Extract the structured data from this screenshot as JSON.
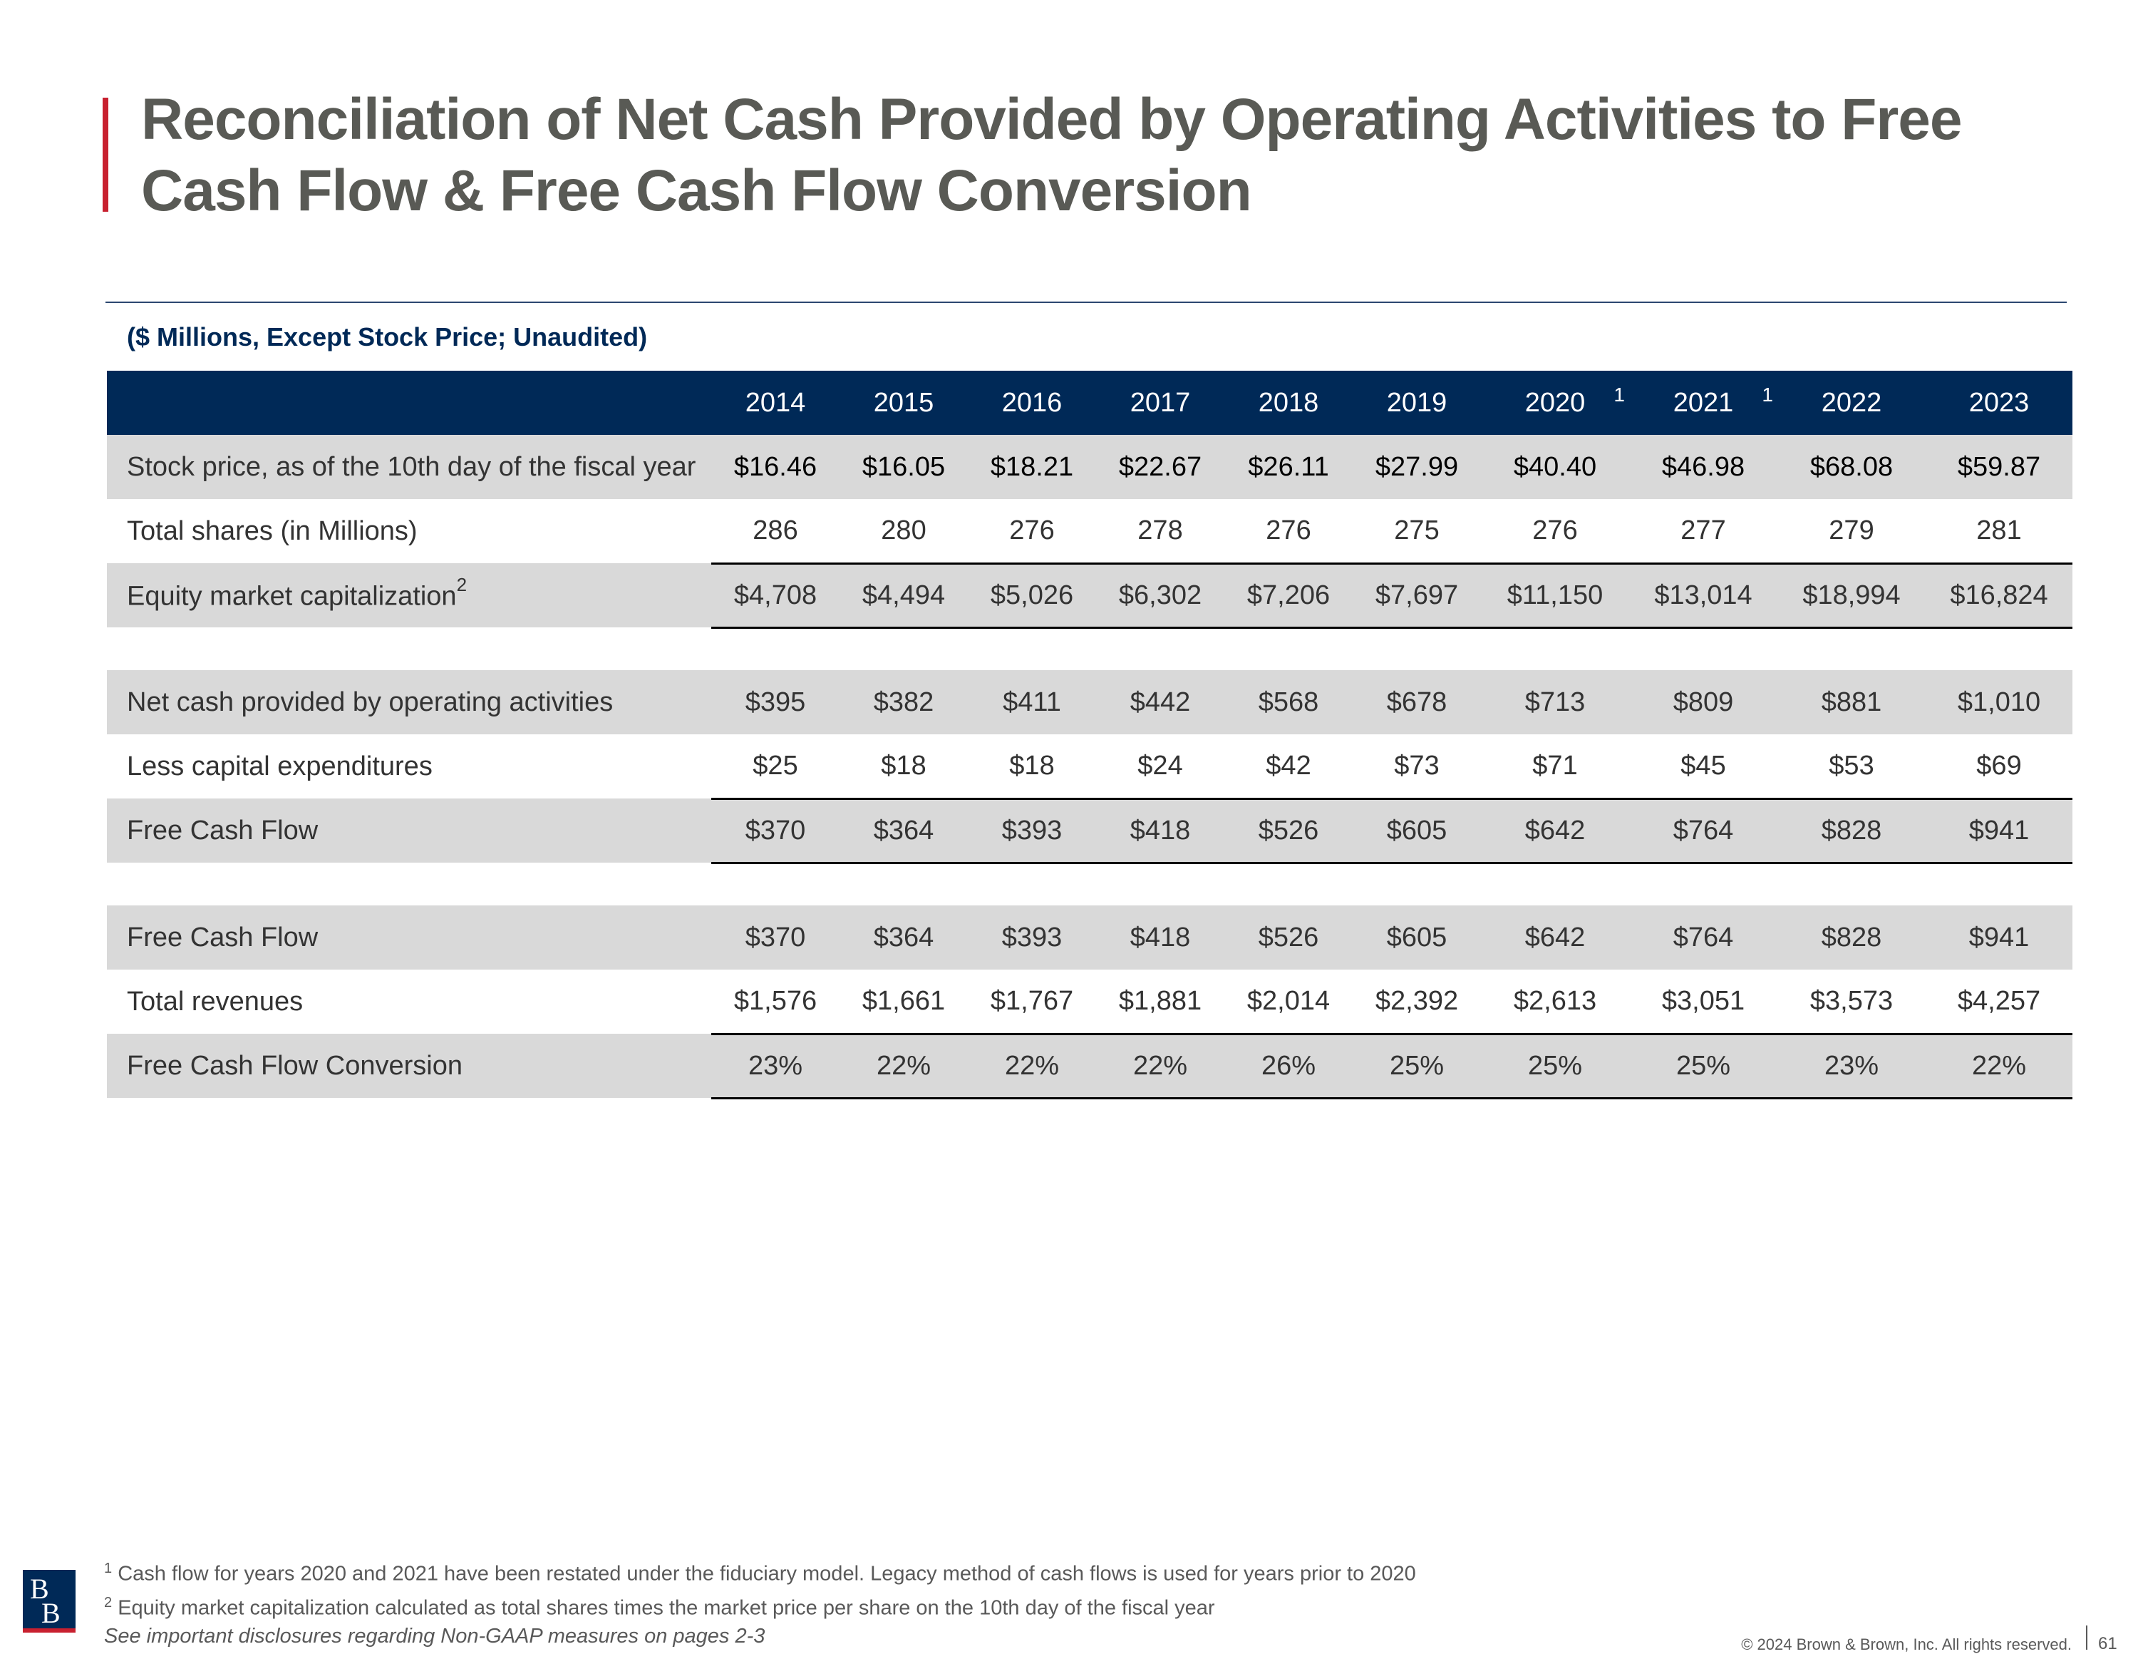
{
  "title": "Reconciliation of Net Cash Provided by Operating Activities to Free Cash Flow & Free Cash Flow Conversion",
  "subtitle": "($ Millions, Except Stock Price; Unaudited)",
  "colors": {
    "accent": "#c8202f",
    "navy": "#002957",
    "row_shade": "#d9d9d9",
    "title_gray": "#595a55"
  },
  "table": {
    "years": [
      "2014",
      "2015",
      "2016",
      "2017",
      "2018",
      "2019",
      "2020",
      "2021",
      "2022",
      "2023"
    ],
    "year_footnotes": {
      "2020": "1",
      "2021": "1"
    },
    "rows": [
      {
        "label": "Stock price, as of the 10th day of the fiscal year",
        "values": [
          "$16.46",
          "$16.05",
          "$18.21",
          "$22.67",
          "$26.11",
          "$27.99",
          "$40.40",
          "$46.98",
          "$68.08",
          "$59.87"
        ]
      },
      {
        "label": "Total shares (in Millions)",
        "values": [
          "286",
          "280",
          "276",
          "278",
          "276",
          "275",
          "276",
          "277",
          "279",
          "281"
        ]
      },
      {
        "label": "Equity market capitalization",
        "footnote": "2",
        "values": [
          "$4,708",
          "$4,494",
          "$5,026",
          "$6,302",
          "$7,206",
          "$7,697",
          "$11,150",
          "$13,014",
          "$18,994",
          "$16,824"
        ]
      },
      {
        "label": "Net cash provided by operating activities",
        "values": [
          "$395",
          "$382",
          "$411",
          "$442",
          "$568",
          "$678",
          "$713",
          "$809",
          "$881",
          "$1,010"
        ]
      },
      {
        "label": "Less capital expenditures",
        "values": [
          "$25",
          "$18",
          "$18",
          "$24",
          "$42",
          "$73",
          "$71",
          "$45",
          "$53",
          "$69"
        ]
      },
      {
        "label": "Free Cash Flow",
        "values": [
          "$370",
          "$364",
          "$393",
          "$418",
          "$526",
          "$605",
          "$642",
          "$764",
          "$828",
          "$941"
        ]
      },
      {
        "label": "Free Cash Flow",
        "values": [
          "$370",
          "$364",
          "$393",
          "$418",
          "$526",
          "$605",
          "$642",
          "$764",
          "$828",
          "$941"
        ]
      },
      {
        "label": "Total revenues",
        "values": [
          "$1,576",
          "$1,661",
          "$1,767",
          "$1,881",
          "$2,014",
          "$2,392",
          "$2,613",
          "$3,051",
          "$3,573",
          "$4,257"
        ]
      },
      {
        "label": "Free Cash Flow Conversion",
        "values": [
          "23%",
          "22%",
          "22%",
          "22%",
          "26%",
          "25%",
          "25%",
          "25%",
          "23%",
          "22%"
        ]
      }
    ]
  },
  "footnotes": {
    "note1_mark": "1",
    "note1": "Cash flow for years 2020 and 2021 have been restated under the fiduciary model. Legacy method of cash flows is used for years prior to 2020",
    "note2_mark": "2",
    "note2": "Equity market capitalization calculated as total shares times the market price per share on the 10th day of the fiscal year",
    "disclosure": "See important disclosures regarding Non-GAAP measures on pages 2-3"
  },
  "logo_letters": "BB",
  "copyright": "© 2024 Brown & Brown, Inc. All rights reserved.",
  "page_number": "61"
}
